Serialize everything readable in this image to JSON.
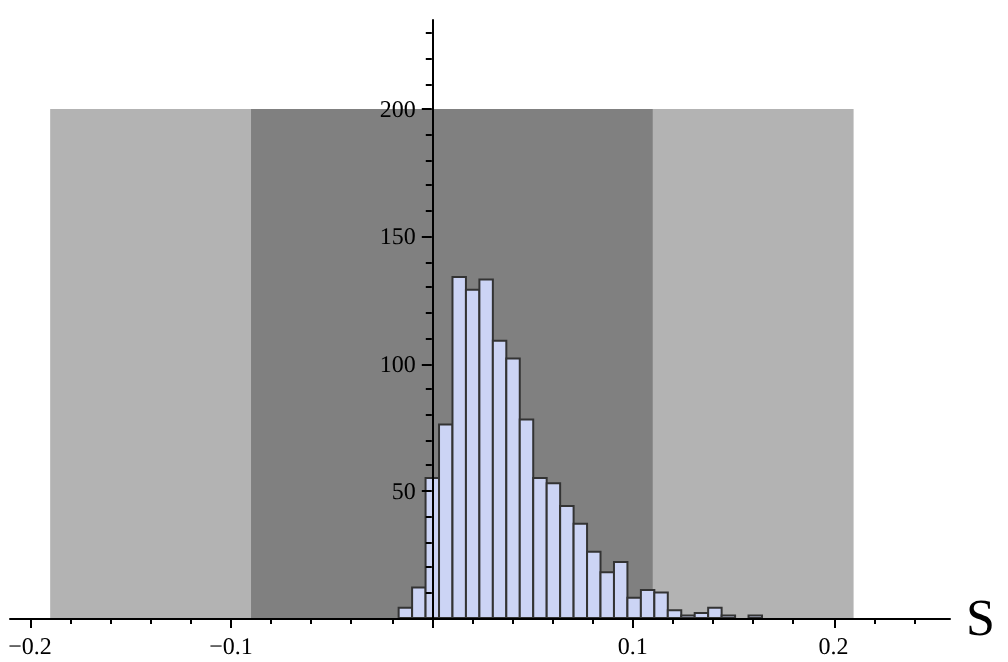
{
  "chart_data": {
    "type": "histogram",
    "xlabel": "S",
    "bins": [
      -0.0165,
      -0.0098,
      -0.0031,
      0.0036,
      0.0103,
      0.017,
      0.0237,
      0.0304,
      0.0371,
      0.0438,
      0.0505,
      0.0572,
      0.0639,
      0.0706,
      0.0773,
      0.084,
      0.0907,
      0.0974,
      0.1041,
      0.1108,
      0.1175,
      0.1242,
      0.1309,
      0.1376,
      0.1443,
      0.151,
      0.1577,
      0.1644
    ],
    "values": [
      4,
      12,
      55,
      76,
      134,
      129,
      133,
      109,
      102,
      78,
      55,
      53,
      44,
      37,
      26,
      18,
      22,
      8,
      11,
      10,
      3,
      1,
      2,
      4,
      1,
      0,
      1
    ],
    "color": "#ccd4f5",
    "xlim": [
      -0.21,
      0.258
    ],
    "ylim": [
      0,
      235
    ],
    "xticks": [
      -0.2,
      -0.1,
      {
        "value": 0,
        "label": null
      },
      0.1,
      0.2
    ],
    "yticks": [
      50,
      100,
      150,
      200
    ],
    "bands": [
      {
        "axis": "x",
        "from": -0.19,
        "to": 0.21,
        "color": "#b3b3b3"
      },
      {
        "axis": "x",
        "from": -0.09,
        "to": 0.11,
        "color": "#808080"
      }
    ],
    "grid": false
  }
}
